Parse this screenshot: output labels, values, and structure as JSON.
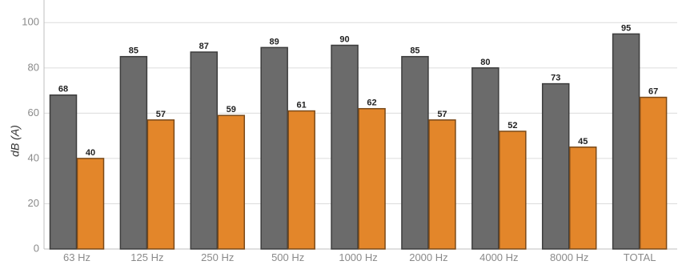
{
  "chart_data": {
    "type": "bar",
    "title": "",
    "xlabel": "",
    "ylabel": "dB (A)",
    "ylim": [
      0,
      110
    ],
    "yticks": [
      0,
      20,
      40,
      60,
      80,
      100
    ],
    "grid": true,
    "categories": [
      "63 Hz",
      "125 Hz",
      "250 Hz",
      "500 Hz",
      "1000 Hz",
      "2000 Hz",
      "4000 Hz",
      "8000 Hz",
      "TOTAL"
    ],
    "series": [
      {
        "values": [
          68,
          85,
          87,
          89,
          90,
          85,
          80,
          73,
          95
        ],
        "color": "#6b6b6b",
        "stroke": "#3d3d3d"
      },
      {
        "values": [
          40,
          57,
          59,
          61,
          62,
          57,
          52,
          45,
          67
        ],
        "color": "#e3862a",
        "stroke": "#7a4a1a"
      }
    ]
  }
}
